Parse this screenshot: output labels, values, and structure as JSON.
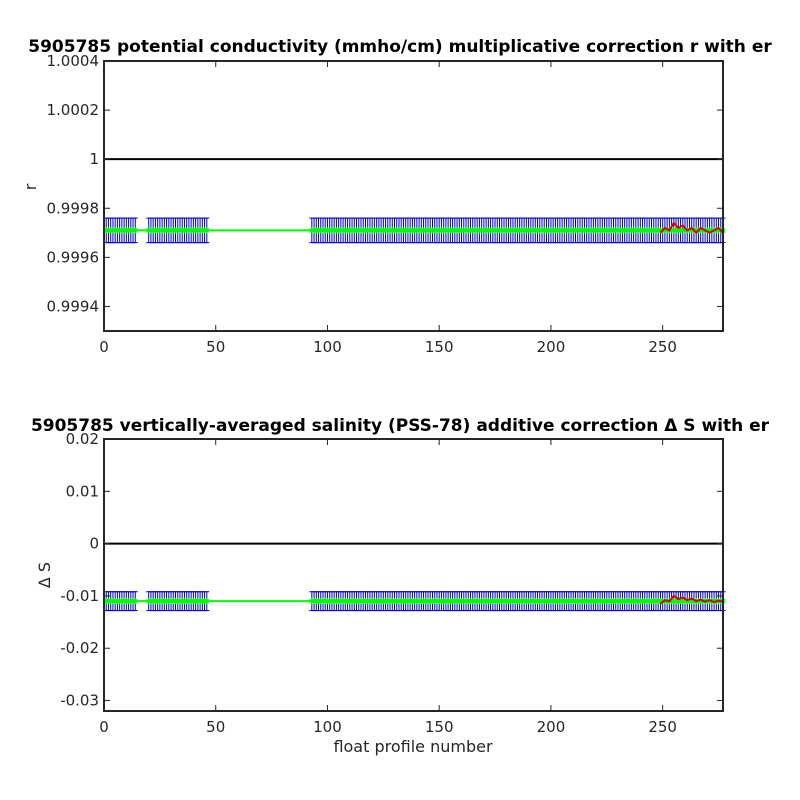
{
  "chart_data": [
    {
      "type": "line",
      "title": "5905785 potential conductivity (mmho/cm) multiplicative correction r with er",
      "xlabel": "",
      "ylabel": "r",
      "xlim": [
        0,
        277
      ],
      "ylim": [
        0.9993,
        1.0004
      ],
      "xticks": [
        0,
        50,
        100,
        150,
        200,
        250
      ],
      "yticks": [
        0.9994,
        0.9996,
        0.9998,
        1,
        1.0002,
        1.0004
      ],
      "ytick_labels": [
        "0.9994",
        "0.9996",
        "0.9998",
        "1",
        "1.0002",
        "1.0004"
      ],
      "reference_line": 1,
      "profile_ranges": [
        [
          1,
          14
        ],
        [
          20,
          46
        ],
        [
          93,
          277
        ]
      ],
      "series": [
        {
          "value": 0.99971,
          "color": "#00ff00"
        },
        {
          "error_low": 0.99966,
          "error_high": 0.99976,
          "color": "#0000cc"
        },
        {
          "x": [
            249,
            251,
            253,
            255,
            257,
            259,
            261,
            263,
            265,
            267,
            269,
            271,
            273,
            275,
            277
          ],
          "values": [
            0.9997,
            0.99972,
            0.99971,
            0.99974,
            0.99972,
            0.99973,
            0.99971,
            0.99972,
            0.9997,
            0.99972,
            0.99971,
            0.9997,
            0.99971,
            0.99972,
            0.9997
          ],
          "color": "#dd0000"
        }
      ]
    },
    {
      "type": "line",
      "title": "5905785 vertically-averaged salinity (PSS-78) additive correction Δ S with er",
      "xlabel": "float profile number",
      "ylabel": "Δ S",
      "xlim": [
        0,
        277
      ],
      "ylim": [
        -0.032,
        0.02
      ],
      "xticks": [
        0,
        50,
        100,
        150,
        200,
        250
      ],
      "yticks": [
        -0.03,
        -0.02,
        -0.01,
        0,
        0.01,
        0.02
      ],
      "ytick_labels": [
        "-0.03",
        "-0.02",
        "-0.01",
        "0",
        "0.01",
        "0.02"
      ],
      "reference_line": 0,
      "profile_ranges": [
        [
          1,
          14
        ],
        [
          20,
          46
        ],
        [
          93,
          277
        ]
      ],
      "series": [
        {
          "value": -0.011,
          "color": "#00ff00"
        },
        {
          "error_low": -0.0128,
          "error_high": -0.0092,
          "color": "#0000cc"
        },
        {
          "x": [
            249,
            251,
            253,
            255,
            257,
            259,
            261,
            263,
            265,
            267,
            269,
            271,
            273,
            275,
            277
          ],
          "values": [
            -0.0115,
            -0.0108,
            -0.011,
            -0.01,
            -0.0106,
            -0.0103,
            -0.0108,
            -0.0105,
            -0.011,
            -0.0107,
            -0.0111,
            -0.0108,
            -0.0112,
            -0.0109,
            -0.0111
          ],
          "color": "#dd0000"
        }
      ]
    }
  ]
}
